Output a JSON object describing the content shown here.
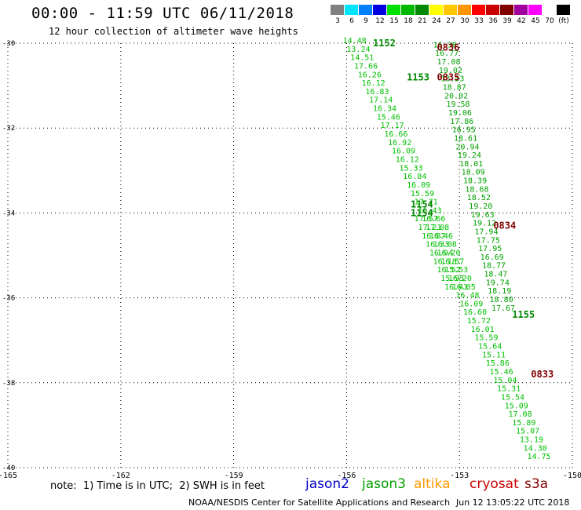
{
  "header": {
    "title": "00:00 - 11:59 UTC 06/11/2018",
    "subtitle": "12 hour collection of altimeter wave heights"
  },
  "legend": {
    "unit": "(ft)",
    "bins": [
      {
        "label": "3",
        "color": "#808080"
      },
      {
        "label": "6",
        "color": "#00e5ff"
      },
      {
        "label": "9",
        "color": "#0080ff"
      },
      {
        "label": "12",
        "color": "#0000e0"
      },
      {
        "label": "15",
        "color": "#00e000"
      },
      {
        "label": "18",
        "color": "#00b800"
      },
      {
        "label": "21",
        "color": "#008800"
      },
      {
        "label": "24",
        "color": "#ffff00"
      },
      {
        "label": "27",
        "color": "#ffc800"
      },
      {
        "label": "30",
        "color": "#ff9600"
      },
      {
        "label": "33",
        "color": "#ff0000"
      },
      {
        "label": "36",
        "color": "#c80000"
      },
      {
        "label": "39",
        "color": "#800000"
      },
      {
        "label": "42",
        "color": "#a000a0"
      },
      {
        "label": "45",
        "color": "#ff00ff"
      },
      {
        "label": "70",
        "color": "#ffffff"
      },
      {
        "label": "",
        "color": "#000000"
      }
    ]
  },
  "chart_data": {
    "type": "scatter",
    "xlim": [
      -165,
      -150
    ],
    "ylim": [
      -40,
      -30
    ],
    "x_ticks": [
      "-165",
      "-162",
      "-159",
      "-156",
      "-153",
      "-150"
    ],
    "y_ticks": [
      "-30",
      "-32",
      "-34",
      "-36",
      "-38",
      "-40"
    ],
    "grid": true,
    "passes": [
      {
        "time": "1152",
        "lon": -155.3,
        "lat": -30.0,
        "color": "#008800"
      },
      {
        "time": "1153",
        "lon": -154.4,
        "lat": -30.8,
        "color": "#008800"
      },
      {
        "time": "1154",
        "lon": -154.3,
        "lat": -33.8,
        "color": "#008800"
      },
      {
        "time": "1154",
        "lon": -154.3,
        "lat": -34.0,
        "color": "#008800"
      },
      {
        "time": "1155",
        "lon": -151.6,
        "lat": -36.4,
        "color": "#008800"
      },
      {
        "time": "0836",
        "lon": -153.6,
        "lat": -30.1,
        "color": "#800000"
      },
      {
        "time": "0835",
        "lon": -153.6,
        "lat": -30.8,
        "color": "#800000"
      },
      {
        "time": "0834",
        "lon": -152.1,
        "lat": -34.3,
        "color": "#800000"
      },
      {
        "time": "0833",
        "lon": -151.1,
        "lat": -37.8,
        "color": "#800000"
      }
    ],
    "tracks": [
      {
        "satellite": "jason3",
        "color": "#00c000",
        "points": [
          {
            "lon": -156.1,
            "lat": -30.0,
            "swh": "14.48"
          },
          {
            "lon": -156.0,
            "lat": -30.2,
            "swh": "13.24"
          },
          {
            "lon": -155.9,
            "lat": -30.4,
            "swh": "14.51"
          },
          {
            "lon": -155.8,
            "lat": -30.6,
            "swh": "17.66"
          },
          {
            "lon": -155.7,
            "lat": -30.8,
            "swh": "16.26"
          },
          {
            "lon": -155.6,
            "lat": -31.0,
            "swh": "16.12"
          },
          {
            "lon": -155.5,
            "lat": -31.2,
            "swh": "16.83"
          },
          {
            "lon": -155.4,
            "lat": -31.4,
            "swh": "17.14"
          },
          {
            "lon": -155.3,
            "lat": -31.6,
            "swh": "16.34"
          },
          {
            "lon": -155.2,
            "lat": -31.8,
            "swh": "15.46"
          },
          {
            "lon": -155.1,
            "lat": -32.0,
            "swh": "17.17"
          },
          {
            "lon": -155.0,
            "lat": -32.2,
            "swh": "16.66"
          },
          {
            "lon": -154.9,
            "lat": -32.4,
            "swh": "16.92"
          },
          {
            "lon": -154.8,
            "lat": -32.6,
            "swh": "16.09"
          },
          {
            "lon": -154.7,
            "lat": -32.8,
            "swh": "16.12"
          },
          {
            "lon": -154.6,
            "lat": -33.0,
            "swh": "15.33"
          },
          {
            "lon": -154.5,
            "lat": -33.2,
            "swh": "16.84"
          },
          {
            "lon": -154.4,
            "lat": -33.4,
            "swh": "16.09"
          },
          {
            "lon": -154.3,
            "lat": -33.6,
            "swh": "15.59"
          },
          {
            "lon": -154.2,
            "lat": -33.8,
            "swh": "17.71"
          },
          {
            "lon": -154.1,
            "lat": -34.0,
            "swh": "16.43"
          },
          {
            "lon": -154.0,
            "lat": -34.2,
            "swh": "16.66"
          },
          {
            "lon": -153.9,
            "lat": -34.4,
            "swh": "17.08"
          },
          {
            "lon": -153.8,
            "lat": -34.6,
            "swh": "16.46"
          },
          {
            "lon": -153.7,
            "lat": -34.8,
            "swh": "16.08"
          },
          {
            "lon": -153.6,
            "lat": -35.0,
            "swh": "16.20"
          },
          {
            "lon": -153.5,
            "lat": -35.2,
            "swh": "16.57"
          },
          {
            "lon": -153.4,
            "lat": -35.4,
            "swh": "15.53"
          },
          {
            "lon": -153.3,
            "lat": -35.6,
            "swh": "16.20"
          },
          {
            "lon": -153.2,
            "lat": -35.8,
            "swh": "16.05"
          },
          {
            "lon": -153.1,
            "lat": -36.0,
            "swh": "16.48"
          },
          {
            "lon": -153.0,
            "lat": -36.2,
            "swh": "16.09"
          },
          {
            "lon": -152.9,
            "lat": -36.4,
            "swh": "16.60"
          },
          {
            "lon": -152.8,
            "lat": -36.6,
            "swh": "15.72"
          },
          {
            "lon": -152.7,
            "lat": -36.8,
            "swh": "16.01"
          },
          {
            "lon": -152.6,
            "lat": -37.0,
            "swh": "15.59"
          },
          {
            "lon": -152.5,
            "lat": -37.2,
            "swh": "15.64"
          },
          {
            "lon": -152.4,
            "lat": -37.4,
            "swh": "15.11"
          },
          {
            "lon": -152.3,
            "lat": -37.6,
            "swh": "15.86"
          },
          {
            "lon": -152.2,
            "lat": -37.8,
            "swh": "15.46"
          },
          {
            "lon": -152.1,
            "lat": -38.0,
            "swh": "15.04"
          },
          {
            "lon": -152.0,
            "lat": -38.2,
            "swh": "15.31"
          },
          {
            "lon": -151.9,
            "lat": -38.4,
            "swh": "15.54"
          },
          {
            "lon": -151.8,
            "lat": -38.6,
            "swh": "15.09"
          },
          {
            "lon": -151.7,
            "lat": -38.8,
            "swh": "17.08"
          },
          {
            "lon": -151.6,
            "lat": -39.0,
            "swh": "15.89"
          },
          {
            "lon": -151.5,
            "lat": -39.2,
            "swh": "15.07"
          },
          {
            "lon": -151.4,
            "lat": -39.4,
            "swh": "13.19"
          },
          {
            "lon": -151.3,
            "lat": -39.6,
            "swh": "14.30"
          },
          {
            "lon": -151.2,
            "lat": -39.8,
            "swh": "14.75"
          }
        ]
      },
      {
        "satellite": "jason3",
        "color": "#00c000",
        "points": [
          {
            "lon": -154.2,
            "lat": -34.2,
            "swh": "17.57"
          },
          {
            "lon": -154.1,
            "lat": -34.4,
            "swh": "17.21"
          },
          {
            "lon": -154.0,
            "lat": -34.6,
            "swh": "16.87"
          },
          {
            "lon": -153.9,
            "lat": -34.8,
            "swh": "16.33"
          },
          {
            "lon": -153.8,
            "lat": -35.0,
            "swh": "16.94"
          },
          {
            "lon": -153.7,
            "lat": -35.2,
            "swh": "16.18"
          },
          {
            "lon": -153.6,
            "lat": -35.4,
            "swh": "16.52"
          },
          {
            "lon": -153.5,
            "lat": -35.6,
            "swh": "15.95"
          },
          {
            "lon": -153.4,
            "lat": -35.8,
            "swh": "16.41"
          }
        ]
      },
      {
        "satellite": "jason3",
        "color": "#00a000",
        "points": [
          {
            "lon": -153.7,
            "lat": -30.1,
            "swh": "16.38"
          },
          {
            "lon": -153.65,
            "lat": -30.3,
            "swh": "16.77"
          },
          {
            "lon": -153.6,
            "lat": -30.5,
            "swh": "17.08"
          },
          {
            "lon": -153.55,
            "lat": -30.7,
            "swh": "19.02"
          },
          {
            "lon": -153.5,
            "lat": -30.9,
            "swh": "18.53"
          },
          {
            "lon": -153.45,
            "lat": -31.1,
            "swh": "18.87"
          },
          {
            "lon": -153.4,
            "lat": -31.3,
            "swh": "20.02"
          },
          {
            "lon": -153.35,
            "lat": -31.5,
            "swh": "19.58"
          },
          {
            "lon": -153.3,
            "lat": -31.7,
            "swh": "19.06"
          },
          {
            "lon": -153.25,
            "lat": -31.9,
            "swh": "17.86"
          },
          {
            "lon": -153.2,
            "lat": -32.1,
            "swh": "16.95"
          },
          {
            "lon": -153.15,
            "lat": -32.3,
            "swh": "18.61"
          },
          {
            "lon": -153.1,
            "lat": -32.5,
            "swh": "20.94"
          },
          {
            "lon": -153.05,
            "lat": -32.7,
            "swh": "19.24"
          },
          {
            "lon": -153.0,
            "lat": -32.9,
            "swh": "18.01"
          },
          {
            "lon": -152.95,
            "lat": -33.1,
            "swh": "18.09"
          },
          {
            "lon": -152.9,
            "lat": -33.3,
            "swh": "18.39"
          },
          {
            "lon": -152.85,
            "lat": -33.5,
            "swh": "18.68"
          },
          {
            "lon": -152.8,
            "lat": -33.7,
            "swh": "18.52"
          },
          {
            "lon": -152.75,
            "lat": -33.9,
            "swh": "19.20"
          },
          {
            "lon": -152.7,
            "lat": -34.1,
            "swh": "19.63"
          },
          {
            "lon": -152.65,
            "lat": -34.3,
            "swh": "19.12"
          },
          {
            "lon": -152.6,
            "lat": -34.5,
            "swh": "17.94"
          },
          {
            "lon": -152.55,
            "lat": -34.7,
            "swh": "17.75"
          },
          {
            "lon": -152.5,
            "lat": -34.9,
            "swh": "17.95"
          },
          {
            "lon": -152.45,
            "lat": -35.1,
            "swh": "16.69"
          },
          {
            "lon": -152.4,
            "lat": -35.3,
            "swh": "18.77"
          },
          {
            "lon": -152.35,
            "lat": -35.5,
            "swh": "18.47"
          },
          {
            "lon": -152.3,
            "lat": -35.7,
            "swh": "19.74"
          },
          {
            "lon": -152.25,
            "lat": -35.9,
            "swh": "18.19"
          },
          {
            "lon": -152.2,
            "lat": -36.1,
            "swh": "18.80"
          },
          {
            "lon": -152.15,
            "lat": -36.3,
            "swh": "17.67"
          }
        ]
      }
    ]
  },
  "footer": {
    "note": "note:  1) Time is in UTC;  2) SWH is in feet",
    "satellites": [
      {
        "name": "jason2",
        "color": "#0000cc"
      },
      {
        "name": "jason3",
        "color": "#00a000"
      },
      {
        "name": "altika",
        "color": "#ff9900"
      },
      {
        "name": "cryosat",
        "color": "#cc0000"
      },
      {
        "name": "s3a",
        "color": "#800000"
      }
    ],
    "credit": "NOAA/NESDIS Center for Satellite Applications and Research",
    "timestamp": "Jun 12 13:05:22 UTC 2018"
  }
}
